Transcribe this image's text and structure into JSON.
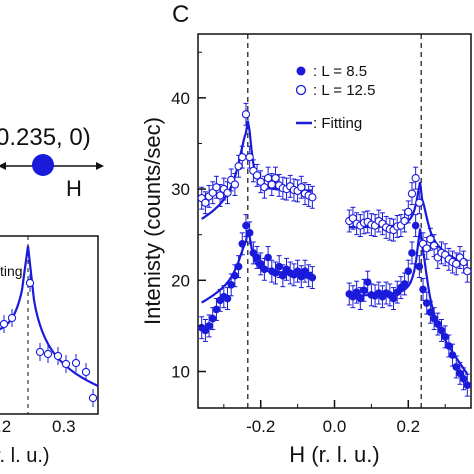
{
  "panel_c_label": "C",
  "left_fragment": {
    "coord_text": "0.235, 0)",
    "h_axis_label": "H",
    "legend_fragment": "ting",
    "tick_labels": [
      ".2",
      "0.3"
    ],
    "xaxis_fragment": "r. l. u.)"
  },
  "colors": {
    "series": "#1a1adb",
    "axis": "#111111"
  },
  "chart_data": {
    "type": "scatter",
    "title": "C",
    "xlabel": "H (r. l. u.)",
    "ylabel": "Intenisty (counts/sec)",
    "xlim": [
      -0.37,
      0.37
    ],
    "ylim": [
      6,
      47
    ],
    "xticks": [
      -0.2,
      0.0,
      0.2
    ],
    "xtick_labels": [
      "-0.2",
      "0.0",
      "0.2"
    ],
    "yticks": [
      10,
      20,
      30,
      40
    ],
    "ytick_labels": [
      "10",
      "20",
      "30",
      "40"
    ],
    "vlines": [
      -0.235,
      0.235
    ],
    "legend": {
      "position": "top-right",
      "entries": [
        ": L = 8.5",
        ": L = 12.5",
        ": Fitting"
      ]
    },
    "series": [
      {
        "name": ": L = 8.5",
        "marker": "filled-circle",
        "x": [
          -0.36,
          -0.35,
          -0.34,
          -0.33,
          -0.32,
          -0.31,
          -0.3,
          -0.29,
          -0.28,
          -0.27,
          -0.26,
          -0.25,
          -0.24,
          -0.23,
          -0.22,
          -0.21,
          -0.2,
          -0.19,
          -0.18,
          -0.17,
          -0.16,
          -0.15,
          -0.14,
          -0.13,
          -0.12,
          -0.11,
          -0.1,
          -0.09,
          -0.08,
          -0.07,
          -0.06,
          0.04,
          0.05,
          0.06,
          0.07,
          0.08,
          0.09,
          0.1,
          0.11,
          0.12,
          0.13,
          0.14,
          0.15,
          0.16,
          0.17,
          0.18,
          0.19,
          0.2,
          0.21,
          0.22,
          0.23,
          0.24,
          0.25,
          0.26,
          0.27,
          0.28,
          0.29,
          0.3,
          0.31,
          0.32,
          0.33,
          0.34,
          0.35,
          0.36
        ],
        "y": [
          14.8,
          14.5,
          15.0,
          15.8,
          16.8,
          17.8,
          18.2,
          18.0,
          19.5,
          20.5,
          21.5,
          24.0,
          26.0,
          25.2,
          23.0,
          22.5,
          21.8,
          21.2,
          22.5,
          21.0,
          20.8,
          21.5,
          20.5,
          21.2,
          20.8,
          20.6,
          21.0,
          20.4,
          21.0,
          20.5,
          20.3,
          18.5,
          18.2,
          18.7,
          18.0,
          18.9,
          19.8,
          18.4,
          18.3,
          18.6,
          18.2,
          18.6,
          18.4,
          18.0,
          18.7,
          19.2,
          19.6,
          21.0,
          23.0,
          26.0,
          21.5,
          19.0,
          17.5,
          16.5,
          15.8,
          15.2,
          14.5,
          13.8,
          12.8,
          11.8,
          10.5,
          9.8,
          9.2,
          8.5
        ],
        "err": 1.2
      },
      {
        "name": ": L = 12.5",
        "marker": "open-circle",
        "x": [
          -0.36,
          -0.35,
          -0.34,
          -0.33,
          -0.32,
          -0.31,
          -0.3,
          -0.29,
          -0.28,
          -0.27,
          -0.26,
          -0.25,
          -0.24,
          -0.23,
          -0.22,
          -0.21,
          -0.2,
          -0.19,
          -0.18,
          -0.17,
          -0.16,
          -0.15,
          -0.14,
          -0.13,
          -0.12,
          -0.11,
          -0.1,
          -0.09,
          -0.08,
          -0.07,
          -0.06,
          0.04,
          0.05,
          0.06,
          0.07,
          0.08,
          0.09,
          0.1,
          0.11,
          0.12,
          0.13,
          0.14,
          0.15,
          0.16,
          0.17,
          0.18,
          0.19,
          0.2,
          0.21,
          0.22,
          0.23,
          0.24,
          0.25,
          0.26,
          0.27,
          0.28,
          0.29,
          0.3,
          0.31,
          0.32,
          0.33,
          0.34,
          0.35,
          0.36
        ],
        "y": [
          29.0,
          28.5,
          29.2,
          29.6,
          30.2,
          29.3,
          30.0,
          29.6,
          31.0,
          30.5,
          32.5,
          33.5,
          38.2,
          33.5,
          32.0,
          31.5,
          30.8,
          30.2,
          31.2,
          30.5,
          31.2,
          30.4,
          30.1,
          30.0,
          30.3,
          29.9,
          29.8,
          30.2,
          29.5,
          29.3,
          29.1,
          26.5,
          26.8,
          26.2,
          26.0,
          26.3,
          26.4,
          26.1,
          26.0,
          26.5,
          26.2,
          25.8,
          25.6,
          25.5,
          25.9,
          26.0,
          26.5,
          27.5,
          29.5,
          31.2,
          28.5,
          24.0,
          23.5,
          24.5,
          23.8,
          22.5,
          23.0,
          22.8,
          22.3,
          22.0,
          21.8,
          22.5,
          22.0,
          21.0
        ],
        "err": 1.2
      }
    ],
    "fits": [
      {
        "series": ": L = 8.5",
        "baseline_left": 20.8,
        "baseline_right": 18.3,
        "peak_left": 25.5,
        "peak_right": 26.0
      },
      {
        "series": ": L = 12.5",
        "baseline_left": 29.8,
        "baseline_right": 25.8,
        "peak_left": 37.5,
        "peak_right": 31.0
      }
    ]
  }
}
